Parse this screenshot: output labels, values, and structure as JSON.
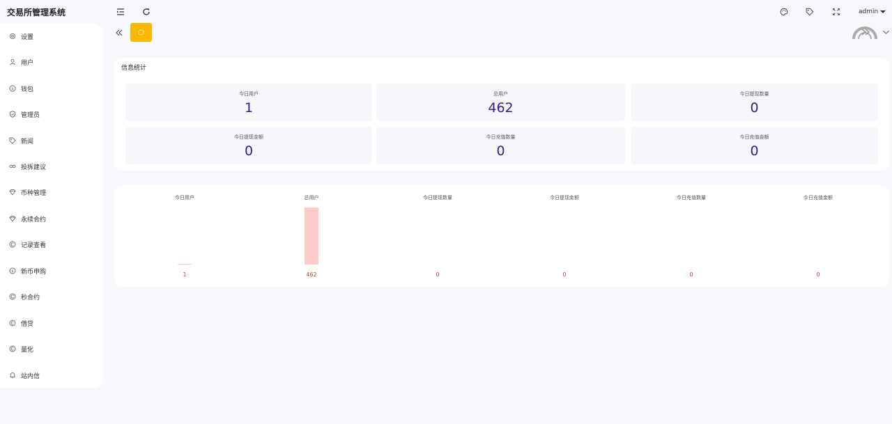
{
  "app": {
    "title": "交易所管理系统"
  },
  "sidebar": {
    "items": [
      {
        "label": "设置",
        "icon": "gear-icon"
      },
      {
        "label": "用户",
        "icon": "user-icon"
      },
      {
        "label": "钱包",
        "icon": "coin-icon"
      },
      {
        "label": "管理员",
        "icon": "shield-icon"
      },
      {
        "label": "新闻",
        "icon": "tag-icon"
      },
      {
        "label": "投拆建议",
        "icon": "link-icon"
      },
      {
        "label": "币种管理",
        "icon": "diamond-icon"
      },
      {
        "label": "永续合约",
        "icon": "diamond-icon"
      },
      {
        "label": "记录查看",
        "icon": "c-circle-icon"
      },
      {
        "label": "新币申购",
        "icon": "coin-icon"
      },
      {
        "label": "秒合约",
        "icon": "c-circle-icon"
      },
      {
        "label": "借贷",
        "icon": "c-circle-icon"
      },
      {
        "label": "量化",
        "icon": "c-circle-icon"
      },
      {
        "label": "站内信",
        "icon": "bell-icon"
      }
    ]
  },
  "header": {
    "user": "admin"
  },
  "colors": {
    "accent": "#f9b700",
    "value": "#3a1890",
    "bar": "#ffcaca",
    "chart_value": "#c0392b"
  },
  "stats": {
    "title": "信息统计",
    "items": [
      {
        "label": "今日用户",
        "value": "1"
      },
      {
        "label": "总用户",
        "value": "462"
      },
      {
        "label": "今日提现数量",
        "value": "0"
      },
      {
        "label": "今日提现金额",
        "value": "0"
      },
      {
        "label": "今日充值数量",
        "value": "0"
      },
      {
        "label": "今日充值金额",
        "value": "0"
      }
    ]
  },
  "chart_data": {
    "type": "bar",
    "categories": [
      "今日用户",
      "总用户",
      "今日提现数量",
      "今日提现金额",
      "今日充值数量",
      "今日充值金额"
    ],
    "values": [
      1,
      462,
      0,
      0,
      0,
      0
    ],
    "title": "",
    "xlabel": "",
    "ylabel": "",
    "ylim": [
      0,
      462
    ],
    "grid": false,
    "legend": "none"
  }
}
